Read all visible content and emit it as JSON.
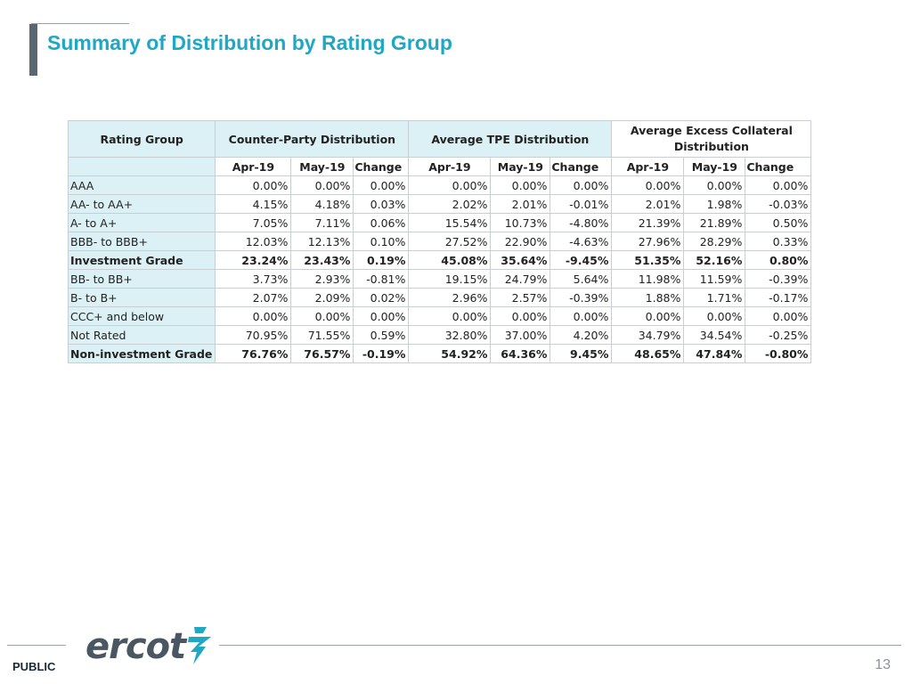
{
  "header": {
    "title": "Summary of Distribution by Rating Group"
  },
  "table": {
    "col_headers": {
      "rating_group": "Rating Group",
      "counterparty": "Counter-Party Distribution",
      "avg_tpe": "Average TPE Distribution",
      "avg_excess": "Average Excess Collateral Distribution"
    },
    "sub_headers": [
      "Apr-19",
      "May-19",
      "Change",
      "Apr-19",
      "May-19",
      "Change",
      "Apr-19",
      "May-19",
      "Change"
    ],
    "rows": [
      {
        "label": "AAA",
        "values": [
          "0.00%",
          "0.00%",
          "0.00%",
          "0.00%",
          "0.00%",
          "0.00%",
          "0.00%",
          "0.00%",
          "0.00%"
        ]
      },
      {
        "label": "AA- to AA+",
        "values": [
          "4.15%",
          "4.18%",
          "0.03%",
          "2.02%",
          "2.01%",
          "-0.01%",
          "2.01%",
          "1.98%",
          "-0.03%"
        ]
      },
      {
        "label": "A- to A+",
        "values": [
          "7.05%",
          "7.11%",
          "0.06%",
          "15.54%",
          "10.73%",
          "-4.80%",
          "21.39%",
          "21.89%",
          "0.50%"
        ]
      },
      {
        "label": "BBB- to BBB+",
        "values": [
          "12.03%",
          "12.13%",
          "0.10%",
          "27.52%",
          "22.90%",
          "-4.63%",
          "27.96%",
          "28.29%",
          "0.33%"
        ]
      },
      {
        "label": "Investment Grade",
        "values": [
          "23.24%",
          "23.43%",
          "0.19%",
          "45.08%",
          "35.64%",
          "-9.45%",
          "51.35%",
          "52.16%",
          "0.80%"
        ]
      },
      {
        "label": "BB- to BB+",
        "values": [
          "3.73%",
          "2.93%",
          "-0.81%",
          "19.15%",
          "24.79%",
          "5.64%",
          "11.98%",
          "11.59%",
          "-0.39%"
        ]
      },
      {
        "label": "B- to B+",
        "values": [
          "2.07%",
          "2.09%",
          "0.02%",
          "2.96%",
          "2.57%",
          "-0.39%",
          "1.88%",
          "1.71%",
          "-0.17%"
        ]
      },
      {
        "label": "CCC+ and below",
        "values": [
          "0.00%",
          "0.00%",
          "0.00%",
          "0.00%",
          "0.00%",
          "0.00%",
          "0.00%",
          "0.00%",
          "0.00%"
        ]
      },
      {
        "label": "Not Rated",
        "values": [
          "70.95%",
          "71.55%",
          "0.59%",
          "32.80%",
          "37.00%",
          "4.20%",
          "34.79%",
          "34.54%",
          "-0.25%"
        ]
      },
      {
        "label": "Non-investment Grade",
        "values": [
          "76.76%",
          "76.57%",
          "-0.19%",
          "54.92%",
          "64.36%",
          "9.45%",
          "48.65%",
          "47.84%",
          "-0.80%"
        ]
      }
    ]
  },
  "footer": {
    "logo_text": "ercot",
    "logo_icon": "ercot-bolt-icon",
    "classification": "PUBLIC",
    "page_number": "13"
  },
  "colors": {
    "title": "#1fa7c4",
    "header_fill": "#dcf1f5",
    "accent_bar": "#5b6770",
    "logo_grey": "#4a5661",
    "logo_teal": "#1fa7c4"
  }
}
